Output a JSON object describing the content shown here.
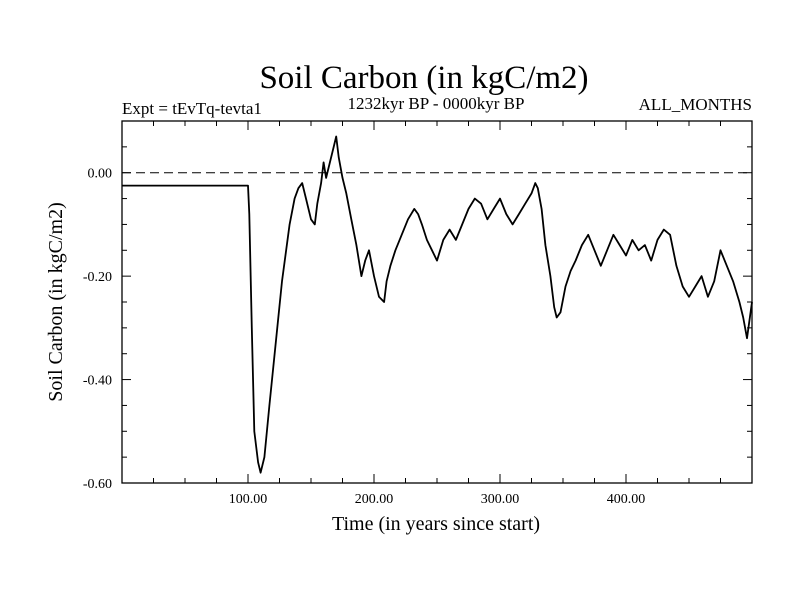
{
  "chart_data": {
    "type": "line",
    "title": "Soil Carbon (in kgC/m2)",
    "subtitle_left": "Expt = tEvTq-tevta1",
    "subtitle_center": "1232kyr BP - 0000kyr BP",
    "subtitle_right": "ALL_MONTHS",
    "xlabel": "Time (in years since start)",
    "ylabel": "Soil Carbon (in kgC/m2)",
    "xlim": [
      0,
      500
    ],
    "ylim": [
      -0.6,
      0.1
    ],
    "xticks": [
      100,
      200,
      300,
      400
    ],
    "xtick_labels": [
      "100.00",
      "200.00",
      "300.00",
      "400.00"
    ],
    "yticks": [
      0.0,
      -0.2,
      -0.4,
      -0.6
    ],
    "ytick_labels": [
      "0.00",
      "-0.20",
      "-0.40",
      "-0.60"
    ],
    "reference_line": {
      "y": 0.0,
      "style": "dashed"
    },
    "series": [
      {
        "name": "Soil Carbon",
        "x": [
          0,
          100,
          101,
          103,
          105,
          108,
          110,
          113,
          117,
          122,
          127,
          133,
          137,
          140,
          143,
          146,
          150,
          153,
          155,
          158,
          160,
          162,
          165,
          168,
          170,
          172,
          175,
          178,
          182,
          186,
          190,
          193,
          196,
          200,
          204,
          208,
          210,
          213,
          217,
          222,
          227,
          232,
          235,
          238,
          242,
          246,
          250,
          255,
          260,
          265,
          270,
          275,
          280,
          285,
          290,
          295,
          300,
          305,
          310,
          315,
          320,
          325,
          328,
          330,
          333,
          336,
          340,
          343,
          345,
          348,
          352,
          356,
          360,
          365,
          370,
          375,
          380,
          385,
          390,
          395,
          400,
          405,
          410,
          415,
          420,
          425,
          430,
          435,
          440,
          445,
          450,
          455,
          460,
          465,
          470,
          475,
          480,
          485,
          490,
          493,
          496,
          500
        ],
        "y": [
          -0.025,
          -0.025,
          -0.08,
          -0.3,
          -0.5,
          -0.56,
          -0.58,
          -0.55,
          -0.45,
          -0.33,
          -0.21,
          -0.1,
          -0.05,
          -0.03,
          -0.02,
          -0.05,
          -0.09,
          -0.1,
          -0.06,
          -0.02,
          0.02,
          -0.01,
          0.02,
          0.05,
          0.07,
          0.03,
          -0.01,
          -0.04,
          -0.09,
          -0.14,
          -0.2,
          -0.17,
          -0.15,
          -0.2,
          -0.24,
          -0.25,
          -0.21,
          -0.18,
          -0.15,
          -0.12,
          -0.09,
          -0.07,
          -0.08,
          -0.1,
          -0.13,
          -0.15,
          -0.17,
          -0.13,
          -0.11,
          -0.13,
          -0.1,
          -0.07,
          -0.05,
          -0.06,
          -0.09,
          -0.07,
          -0.05,
          -0.08,
          -0.1,
          -0.08,
          -0.06,
          -0.04,
          -0.02,
          -0.03,
          -0.07,
          -0.14,
          -0.2,
          -0.26,
          -0.28,
          -0.27,
          -0.22,
          -0.19,
          -0.17,
          -0.14,
          -0.12,
          -0.15,
          -0.18,
          -0.15,
          -0.12,
          -0.14,
          -0.16,
          -0.13,
          -0.15,
          -0.14,
          -0.17,
          -0.13,
          -0.11,
          -0.12,
          -0.18,
          -0.22,
          -0.24,
          -0.22,
          -0.2,
          -0.24,
          -0.21,
          -0.15,
          -0.18,
          -0.21,
          -0.25,
          -0.28,
          -0.32,
          -0.25
        ]
      }
    ]
  }
}
